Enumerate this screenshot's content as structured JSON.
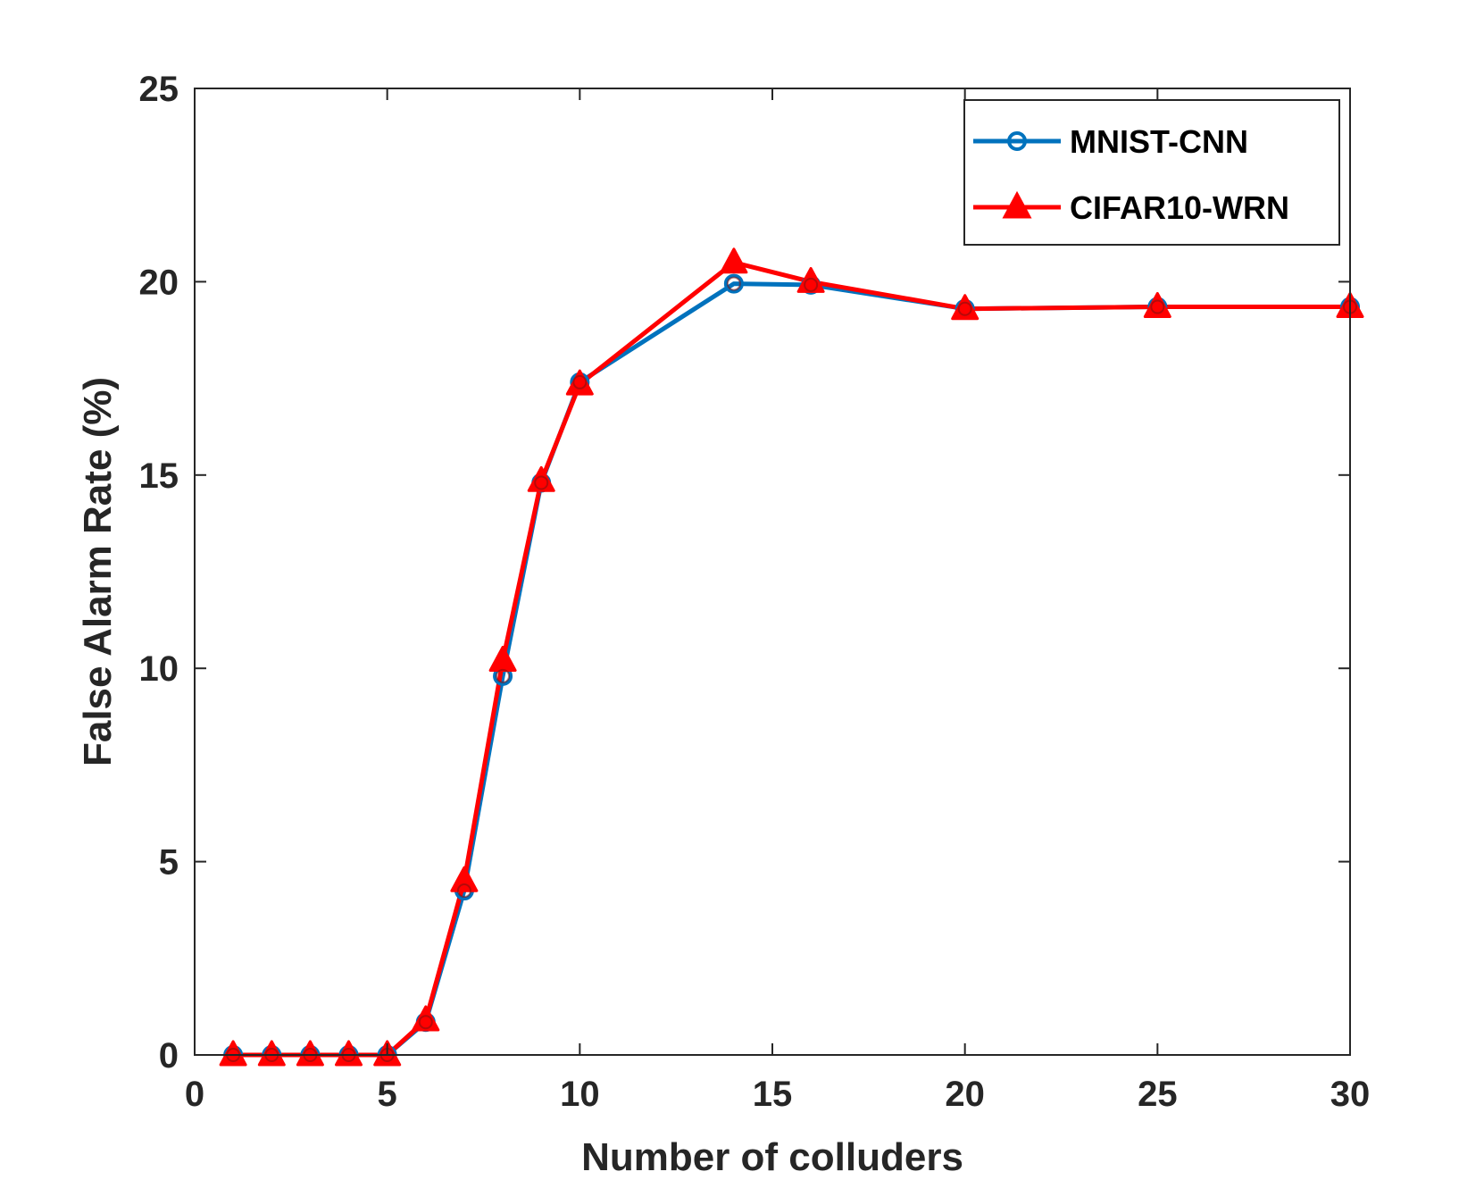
{
  "chart_data": {
    "type": "line",
    "title": "",
    "xlabel": "Number of colluders",
    "ylabel": "False Alarm Rate (%)",
    "xlim": [
      0,
      30
    ],
    "ylim": [
      0,
      25
    ],
    "xticks": [
      0,
      5,
      10,
      15,
      20,
      25,
      30
    ],
    "yticks": [
      0,
      5,
      10,
      15,
      20,
      25
    ],
    "grid": false,
    "legend_position": "top-right",
    "x": [
      1,
      2,
      3,
      4,
      5,
      6,
      7,
      8,
      9,
      10,
      14,
      16,
      20,
      25,
      30
    ],
    "series": [
      {
        "name": "MNIST-CNN",
        "color": "#0072BD",
        "marker": "circle",
        "values": [
          0,
          0,
          0,
          0,
          0,
          0.85,
          4.25,
          9.8,
          14.8,
          17.4,
          19.95,
          19.92,
          19.3,
          19.35,
          19.35
        ]
      },
      {
        "name": "CIFAR10-WRN",
        "color": "#FF0000",
        "marker": "triangle",
        "values": [
          0,
          0,
          0,
          0,
          0,
          0.9,
          4.5,
          10.2,
          14.85,
          17.35,
          20.5,
          20.0,
          19.3,
          19.35,
          19.35
        ]
      }
    ]
  }
}
